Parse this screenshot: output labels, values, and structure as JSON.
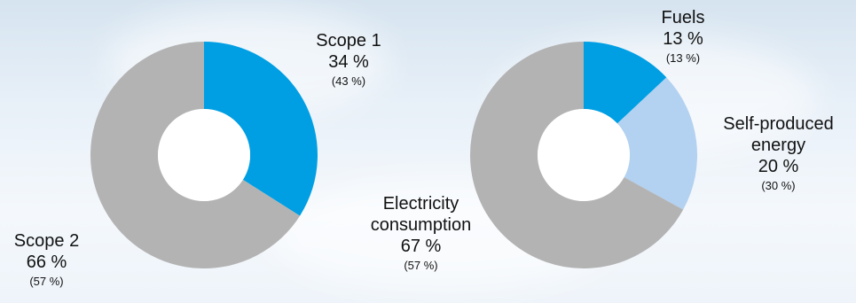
{
  "chart_data": [
    {
      "type": "pie",
      "variant": "donut",
      "slices": [
        {
          "key": "scope1",
          "name": "Scope 1",
          "value": 34,
          "value_label": "34 %",
          "prev_label": "(43 %)",
          "color": "#009fe3"
        },
        {
          "key": "scope2",
          "name": "Scope 2",
          "value": 66,
          "value_label": "66 %",
          "prev_label": "(57 %)",
          "color": "#b3b3b3"
        }
      ]
    },
    {
      "type": "pie",
      "variant": "donut",
      "slices": [
        {
          "key": "fuels",
          "name": "Fuels",
          "value": 13,
          "value_label": "13 %",
          "prev_label": "(13 %)",
          "color": "#009fe3"
        },
        {
          "key": "self",
          "name": "Self-produced energy",
          "name_lines": [
            "Self-produced",
            "energy"
          ],
          "value": 20,
          "value_label": "20 %",
          "prev_label": "(30 %)",
          "color": "#b3d1f0"
        },
        {
          "key": "elec",
          "name": "Electricity consumption",
          "name_lines": [
            "Electricity",
            "consumption"
          ],
          "value": 67,
          "value_label": "67 %",
          "prev_label": "(57 %)",
          "color": "#b3b3b3"
        }
      ]
    }
  ]
}
